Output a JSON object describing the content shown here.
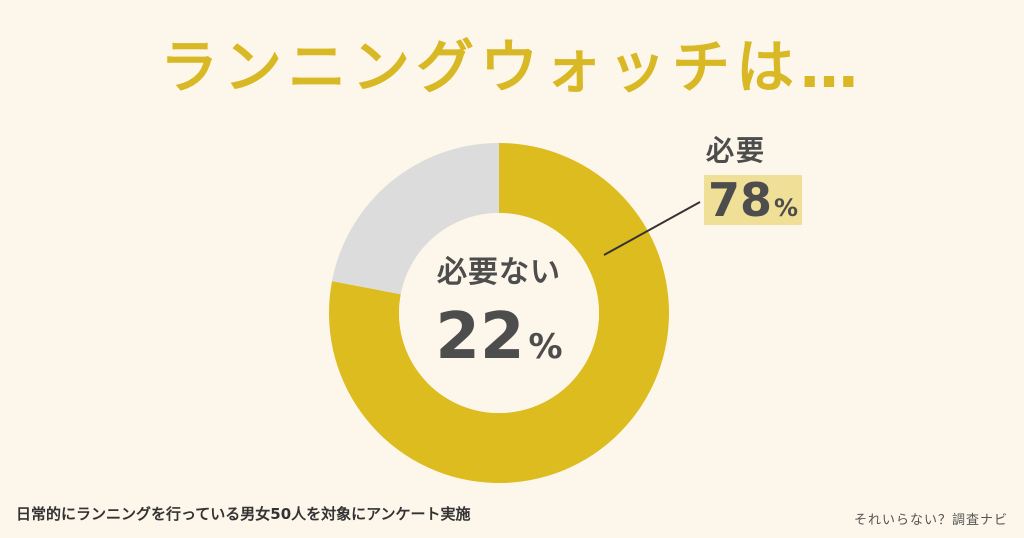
{
  "title": "ランニングウォッチは…",
  "chart_data": {
    "type": "pie",
    "donut": true,
    "categories": [
      "必要",
      "必要ない"
    ],
    "values": [
      78,
      22
    ],
    "unit": "%",
    "colors": {
      "必要": "#dcbc1e",
      "必要ない": "#dcdcdc"
    },
    "labels": {
      "必要": {
        "text": "必要",
        "value": "78",
        "unit": "%"
      },
      "必要ない": {
        "text": "必要ない",
        "value": "22",
        "unit": "%"
      }
    },
    "legend": "none"
  },
  "footnote": "日常的にランニングを行っている男女50人を対象にアンケート実施",
  "brand": "それいらない？調査ナビ",
  "colors": {
    "background": "#fdf6ea",
    "title": "#d9b825",
    "highlight": "#f0df96"
  }
}
